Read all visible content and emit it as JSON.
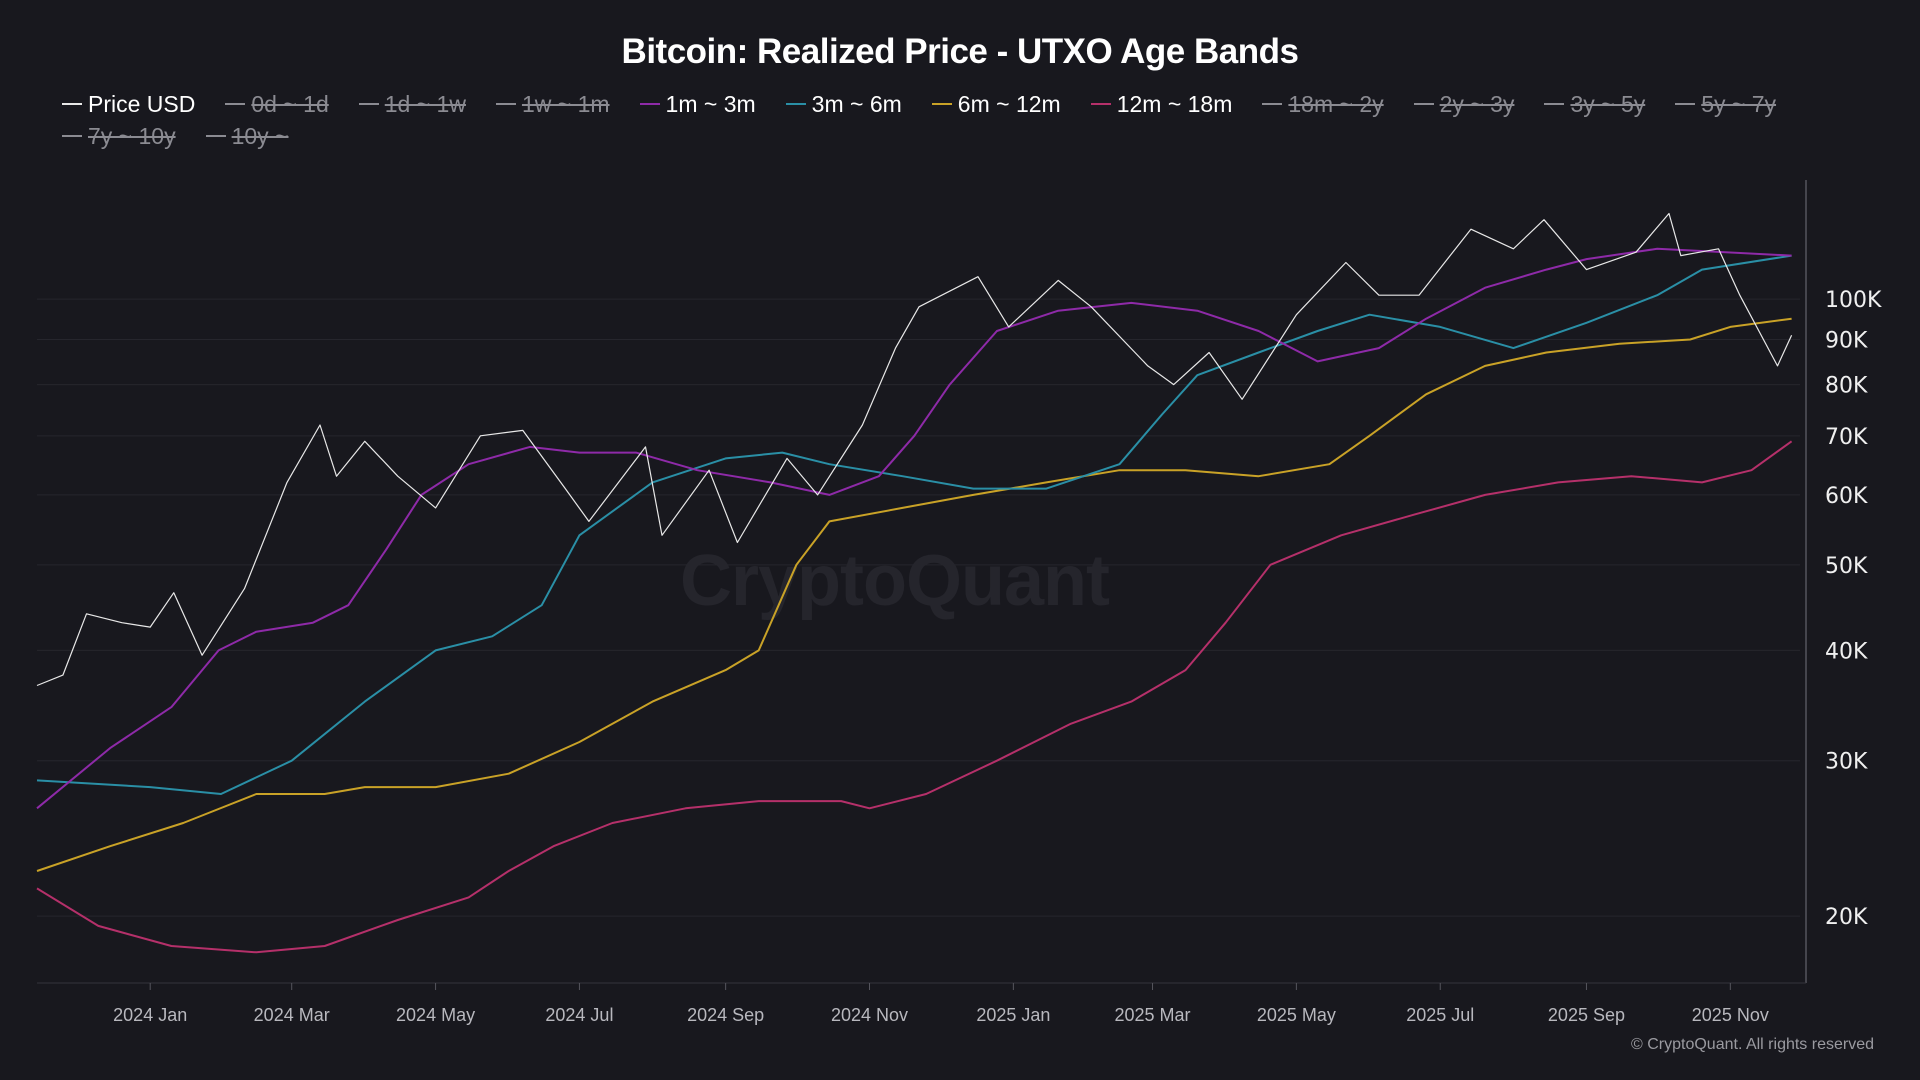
{
  "title": "Bitcoin: Realized Price - UTXO Age Bands",
  "copyright": "© CryptoQuant. All rights reserved",
  "watermark": "CryptoQuant",
  "background": "#18181e",
  "legend": [
    {
      "label": "Price USD",
      "color": "#e8e8e8",
      "visible": true
    },
    {
      "label": "0d ~ 1d",
      "color": "#8b8b92",
      "visible": false
    },
    {
      "label": "1d ~ 1w",
      "color": "#8b8b92",
      "visible": false
    },
    {
      "label": "1w ~ 1m",
      "color": "#8b8b92",
      "visible": false
    },
    {
      "label": "1m ~ 3m",
      "color": "#8e2aa8",
      "visible": true
    },
    {
      "label": "3m ~ 6m",
      "color": "#2a8fa6",
      "visible": true
    },
    {
      "label": "6m ~ 12m",
      "color": "#c9a227",
      "visible": true
    },
    {
      "label": "12m ~ 18m",
      "color": "#b5306a",
      "visible": true
    },
    {
      "label": "18m ~ 2y",
      "color": "#8b8b92",
      "visible": false
    },
    {
      "label": "2y ~ 3y",
      "color": "#8b8b92",
      "visible": false
    },
    {
      "label": "3y ~ 5y",
      "color": "#8b8b92",
      "visible": false
    },
    {
      "label": "5y ~ 7y",
      "color": "#8b8b92",
      "visible": false
    },
    {
      "label": "7y ~ 10y",
      "color": "#8b8b92",
      "visible": false
    },
    {
      "label": "10y ~",
      "color": "#8b8b92",
      "visible": false
    }
  ],
  "chart_data": {
    "type": "line",
    "title": "Bitcoin: Realized Price - UTXO Age Bands",
    "y_scale": "log",
    "ylim": [
      16800,
      135000
    ],
    "xlim": [
      "2023-11-14",
      "2025-11-28"
    ],
    "y_ticks": [
      {
        "v": 20000,
        "label": "20K"
      },
      {
        "v": 30000,
        "label": "30K"
      },
      {
        "v": 40000,
        "label": "40K"
      },
      {
        "v": 50000,
        "label": "50K"
      },
      {
        "v": 60000,
        "label": "60K"
      },
      {
        "v": 70000,
        "label": "70K"
      },
      {
        "v": 80000,
        "label": "80K"
      },
      {
        "v": 90000,
        "label": "90K"
      },
      {
        "v": 100000,
        "label": "100K"
      }
    ],
    "x_ticks": [
      {
        "d": "2024-01-01",
        "label": "2024 Jan"
      },
      {
        "d": "2024-03-01",
        "label": "2024 Mar"
      },
      {
        "d": "2024-05-01",
        "label": "2024 May"
      },
      {
        "d": "2024-07-01",
        "label": "2024 Jul"
      },
      {
        "d": "2024-09-01",
        "label": "2024 Sep"
      },
      {
        "d": "2024-11-01",
        "label": "2024 Nov"
      },
      {
        "d": "2025-01-01",
        "label": "2025 Jan"
      },
      {
        "d": "2025-03-01",
        "label": "2025 Mar"
      },
      {
        "d": "2025-05-01",
        "label": "2025 May"
      },
      {
        "d": "2025-07-01",
        "label": "2025 Jul"
      },
      {
        "d": "2025-09-01",
        "label": "2025 Sep"
      },
      {
        "d": "2025-11-01",
        "label": "2025 Nov"
      }
    ],
    "grid": "horizontal",
    "legend_position": "top",
    "series": [
      {
        "name": "Price USD",
        "color": "#e8e8e8",
        "width": 1.2,
        "points": [
          [
            "2023-11-14",
            36500
          ],
          [
            "2023-11-25",
            37500
          ],
          [
            "2023-12-05",
            44000
          ],
          [
            "2023-12-20",
            43000
          ],
          [
            "2024-01-01",
            42500
          ],
          [
            "2024-01-11",
            46500
          ],
          [
            "2024-01-23",
            39500
          ],
          [
            "2024-02-10",
            47000
          ],
          [
            "2024-02-28",
            62000
          ],
          [
            "2024-03-13",
            72000
          ],
          [
            "2024-03-20",
            63000
          ],
          [
            "2024-04-01",
            69000
          ],
          [
            "2024-04-15",
            63000
          ],
          [
            "2024-05-01",
            58000
          ],
          [
            "2024-05-20",
            70000
          ],
          [
            "2024-06-07",
            71000
          ],
          [
            "2024-06-25",
            61000
          ],
          [
            "2024-07-05",
            56000
          ],
          [
            "2024-07-29",
            68000
          ],
          [
            "2024-08-05",
            54000
          ],
          [
            "2024-08-25",
            64000
          ],
          [
            "2024-09-06",
            53000
          ],
          [
            "2024-09-27",
            66000
          ],
          [
            "2024-10-10",
            60000
          ],
          [
            "2024-10-29",
            72000
          ],
          [
            "2024-11-12",
            88000
          ],
          [
            "2024-11-22",
            98000
          ],
          [
            "2024-12-17",
            106000
          ],
          [
            "2024-12-30",
            93000
          ],
          [
            "2025-01-20",
            105000
          ],
          [
            "2025-02-03",
            98000
          ],
          [
            "2025-02-27",
            84000
          ],
          [
            "2025-03-10",
            80000
          ],
          [
            "2025-03-25",
            87000
          ],
          [
            "2025-04-08",
            77000
          ],
          [
            "2025-05-01",
            96000
          ],
          [
            "2025-05-22",
            110000
          ],
          [
            "2025-06-05",
            101000
          ],
          [
            "2025-06-22",
            101000
          ],
          [
            "2025-07-14",
            120000
          ],
          [
            "2025-08-01",
            114000
          ],
          [
            "2025-08-14",
            123000
          ],
          [
            "2025-09-01",
            108000
          ],
          [
            "2025-09-22",
            113000
          ],
          [
            "2025-10-06",
            125000
          ],
          [
            "2025-10-11",
            112000
          ],
          [
            "2025-10-27",
            114000
          ],
          [
            "2025-11-05",
            101000
          ],
          [
            "2025-11-21",
            84000
          ],
          [
            "2025-11-27",
            91000
          ]
        ]
      },
      {
        "name": "1m ~ 3m",
        "color": "#8e2aa8",
        "width": 2,
        "points": [
          [
            "2023-11-14",
            26500
          ],
          [
            "2023-12-15",
            31000
          ],
          [
            "2024-01-10",
            34500
          ],
          [
            "2024-01-30",
            40000
          ],
          [
            "2024-02-15",
            42000
          ],
          [
            "2024-03-10",
            43000
          ],
          [
            "2024-03-25",
            45000
          ],
          [
            "2024-04-10",
            52000
          ],
          [
            "2024-04-25",
            60000
          ],
          [
            "2024-05-15",
            65000
          ],
          [
            "2024-06-10",
            68000
          ],
          [
            "2024-07-01",
            67000
          ],
          [
            "2024-07-25",
            67000
          ],
          [
            "2024-08-20",
            64000
          ],
          [
            "2024-09-20",
            62000
          ],
          [
            "2024-10-15",
            60000
          ],
          [
            "2024-11-05",
            63000
          ],
          [
            "2024-11-20",
            70000
          ],
          [
            "2024-12-05",
            80000
          ],
          [
            "2024-12-25",
            92000
          ],
          [
            "2025-01-20",
            97000
          ],
          [
            "2025-02-20",
            99000
          ],
          [
            "2025-03-20",
            97000
          ],
          [
            "2025-04-15",
            92000
          ],
          [
            "2025-05-10",
            85000
          ],
          [
            "2025-06-05",
            88000
          ],
          [
            "2025-06-25",
            95000
          ],
          [
            "2025-07-20",
            103000
          ],
          [
            "2025-08-15",
            108000
          ],
          [
            "2025-09-01",
            111000
          ],
          [
            "2025-10-01",
            114000
          ],
          [
            "2025-11-27",
            112000
          ]
        ]
      },
      {
        "name": "3m ~ 6m",
        "color": "#2a8fa6",
        "width": 2,
        "points": [
          [
            "2023-11-14",
            28500
          ],
          [
            "2024-01-01",
            28000
          ],
          [
            "2024-01-31",
            27500
          ],
          [
            "2024-03-01",
            30000
          ],
          [
            "2024-04-01",
            35000
          ],
          [
            "2024-05-01",
            40000
          ],
          [
            "2024-05-25",
            41500
          ],
          [
            "2024-06-15",
            45000
          ],
          [
            "2024-07-01",
            54000
          ],
          [
            "2024-08-01",
            62000
          ],
          [
            "2024-09-01",
            66000
          ],
          [
            "2024-09-25",
            67000
          ],
          [
            "2024-10-15",
            65000
          ],
          [
            "2024-11-15",
            63000
          ],
          [
            "2024-12-15",
            61000
          ],
          [
            "2025-01-15",
            61000
          ],
          [
            "2025-02-15",
            65000
          ],
          [
            "2025-03-05",
            74000
          ],
          [
            "2025-03-20",
            82000
          ],
          [
            "2025-04-15",
            87000
          ],
          [
            "2025-05-10",
            92000
          ],
          [
            "2025-06-01",
            96000
          ],
          [
            "2025-07-01",
            93000
          ],
          [
            "2025-08-01",
            88000
          ],
          [
            "2025-09-01",
            94000
          ],
          [
            "2025-10-01",
            101000
          ],
          [
            "2025-10-20",
            108000
          ],
          [
            "2025-11-27",
            112000
          ]
        ]
      },
      {
        "name": "6m ~ 12m",
        "color": "#c9a227",
        "width": 2,
        "points": [
          [
            "2023-11-14",
            22500
          ],
          [
            "2023-12-15",
            24000
          ],
          [
            "2024-01-15",
            25500
          ],
          [
            "2024-02-15",
            27500
          ],
          [
            "2024-03-15",
            27500
          ],
          [
            "2024-04-01",
            28000
          ],
          [
            "2024-05-01",
            28000
          ],
          [
            "2024-06-01",
            29000
          ],
          [
            "2024-07-01",
            31500
          ],
          [
            "2024-08-01",
            35000
          ],
          [
            "2024-09-01",
            38000
          ],
          [
            "2024-09-15",
            40000
          ],
          [
            "2024-10-01",
            50000
          ],
          [
            "2024-10-15",
            56000
          ],
          [
            "2024-11-15",
            58000
          ],
          [
            "2024-12-15",
            60000
          ],
          [
            "2025-01-15",
            62000
          ],
          [
            "2025-02-15",
            64000
          ],
          [
            "2025-03-15",
            64000
          ],
          [
            "2025-04-15",
            63000
          ],
          [
            "2025-05-15",
            65000
          ],
          [
            "2025-06-01",
            70000
          ],
          [
            "2025-06-25",
            78000
          ],
          [
            "2025-07-20",
            84000
          ],
          [
            "2025-08-15",
            87000
          ],
          [
            "2025-09-15",
            89000
          ],
          [
            "2025-10-15",
            90000
          ],
          [
            "2025-11-01",
            93000
          ],
          [
            "2025-11-27",
            95000
          ]
        ]
      },
      {
        "name": "12m ~ 18m",
        "color": "#b5306a",
        "width": 2,
        "points": [
          [
            "2023-11-14",
            21500
          ],
          [
            "2023-12-10",
            19500
          ],
          [
            "2024-01-10",
            18500
          ],
          [
            "2024-02-15",
            18200
          ],
          [
            "2024-03-15",
            18500
          ],
          [
            "2024-04-15",
            19800
          ],
          [
            "2024-05-15",
            21000
          ],
          [
            "2024-06-01",
            22500
          ],
          [
            "2024-06-20",
            24000
          ],
          [
            "2024-07-15",
            25500
          ],
          [
            "2024-08-15",
            26500
          ],
          [
            "2024-09-15",
            27000
          ],
          [
            "2024-10-20",
            27000
          ],
          [
            "2024-11-01",
            26500
          ],
          [
            "2024-11-25",
            27500
          ],
          [
            "2024-12-25",
            30000
          ],
          [
            "2025-01-25",
            33000
          ],
          [
            "2025-02-20",
            35000
          ],
          [
            "2025-03-15",
            38000
          ],
          [
            "2025-04-01",
            43000
          ],
          [
            "2025-04-20",
            50000
          ],
          [
            "2025-05-20",
            54000
          ],
          [
            "2025-06-20",
            57000
          ],
          [
            "2025-07-20",
            60000
          ],
          [
            "2025-08-20",
            62000
          ],
          [
            "2025-09-20",
            63000
          ],
          [
            "2025-10-20",
            62000
          ],
          [
            "2025-11-10",
            64000
          ],
          [
            "2025-11-27",
            69000
          ]
        ]
      }
    ]
  }
}
